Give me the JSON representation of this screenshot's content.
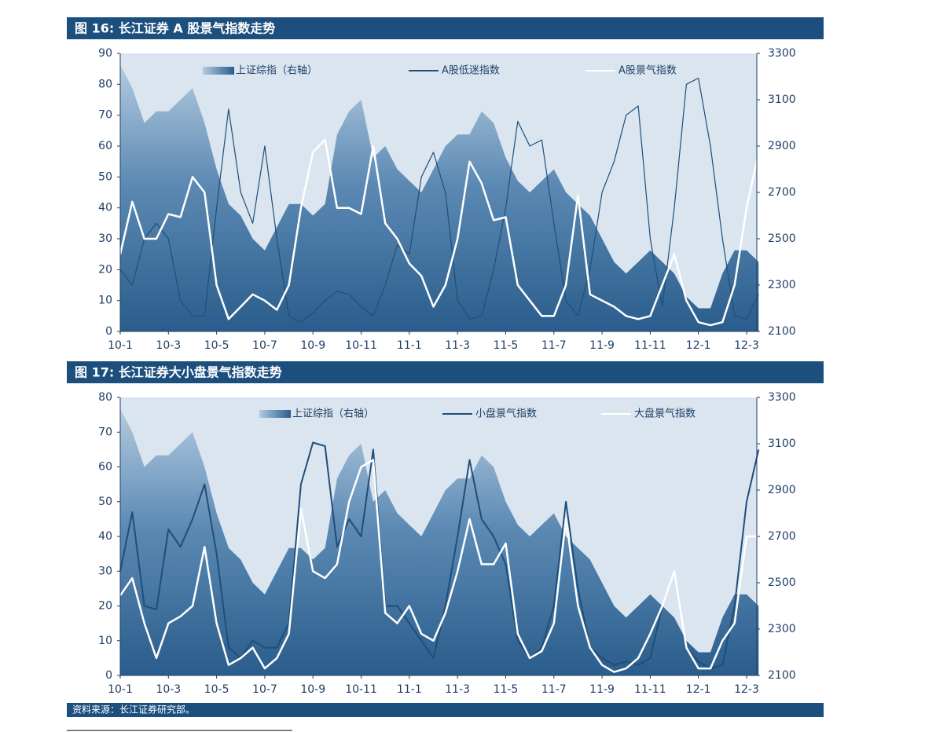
{
  "chart_data": [
    {
      "type": "line",
      "title": "图 16: 长江证券 A 股景气指数走势",
      "categories": [
        "10-1",
        null,
        null,
        null,
        "10-3",
        null,
        null,
        null,
        "10-5",
        null,
        null,
        null,
        "10-7",
        null,
        null,
        null,
        "10-9",
        null,
        null,
        null,
        "10-11",
        null,
        null,
        null,
        "11-1",
        null,
        null,
        null,
        "11-3",
        null,
        null,
        null,
        "11-5",
        null,
        null,
        null,
        "11-7",
        null,
        null,
        null,
        "11-9",
        null,
        null,
        null,
        "11-11",
        null,
        null,
        null,
        "12-1",
        null,
        null,
        null,
        "12-3",
        null
      ],
      "ylim": [
        0,
        90
      ],
      "yticks": [
        0,
        10,
        20,
        30,
        40,
        50,
        60,
        70,
        80,
        90
      ],
      "y2lim": [
        2100,
        3300
      ],
      "y2ticks": [
        2100,
        2300,
        2500,
        2700,
        2900,
        3100,
        3300
      ],
      "series": [
        {
          "name": "上证综指（右轴）",
          "style": "area",
          "axis": "y2",
          "color": "#2e6491",
          "values": [
            3250,
            3150,
            3000,
            3050,
            3050,
            3100,
            3150,
            3000,
            2800,
            2650,
            2600,
            2500,
            2450,
            2550,
            2650,
            2650,
            2600,
            2650,
            2950,
            3050,
            3100,
            2850,
            2900,
            2800,
            2750,
            2700,
            2800,
            2900,
            2950,
            2950,
            3050,
            3000,
            2850,
            2750,
            2700,
            2750,
            2800,
            2700,
            2650,
            2600,
            2500,
            2400,
            2350,
            2400,
            2450,
            2400,
            2350,
            2250,
            2200,
            2200,
            2350,
            2450,
            2450,
            2400
          ]
        },
        {
          "name": "A股低迷指数",
          "style": "line",
          "color": "#1f4e79",
          "values": [
            20,
            15,
            30,
            35,
            30,
            10,
            5,
            5,
            40,
            72,
            45,
            35,
            60,
            30,
            5,
            3,
            6,
            10,
            13,
            12,
            8,
            5,
            15,
            28,
            25,
            50,
            58,
            45,
            10,
            4,
            5,
            20,
            40,
            68,
            60,
            62,
            35,
            10,
            5,
            20,
            45,
            55,
            70,
            73,
            30,
            8,
            40,
            80,
            82,
            60,
            30,
            5,
            4,
            12
          ]
        },
        {
          "name": "A股景气指数",
          "style": "line",
          "color": "#ffffff",
          "values": [
            25,
            42,
            30,
            30,
            38,
            37,
            50,
            45,
            15,
            4,
            8,
            12,
            10,
            7,
            15,
            40,
            58,
            62,
            40,
            40,
            38,
            60,
            35,
            30,
            22,
            18,
            8,
            15,
            30,
            55,
            48,
            36,
            37,
            15,
            10,
            5,
            5,
            15,
            44,
            12,
            10,
            8,
            5,
            4,
            5,
            15,
            25,
            10,
            3,
            2,
            3,
            15,
            40,
            58
          ]
        }
      ]
    },
    {
      "type": "line",
      "title": "图 17: 长江证券大小盘景气指数走势",
      "categories": [
        "10-1",
        null,
        null,
        null,
        "10-3",
        null,
        null,
        null,
        "10-5",
        null,
        null,
        null,
        "10-7",
        null,
        null,
        null,
        "10-9",
        null,
        null,
        null,
        "10-11",
        null,
        null,
        null,
        "11-1",
        null,
        null,
        null,
        "11-3",
        null,
        null,
        null,
        "11-5",
        null,
        null,
        null,
        "11-7",
        null,
        null,
        null,
        "11-9",
        null,
        null,
        null,
        "11-11",
        null,
        null,
        null,
        "12-1",
        null,
        null,
        null,
        "12-3",
        null
      ],
      "ylim": [
        0,
        80
      ],
      "yticks": [
        0,
        10,
        20,
        30,
        40,
        50,
        60,
        70,
        80
      ],
      "y2lim": [
        2100,
        3300
      ],
      "y2ticks": [
        2100,
        2300,
        2500,
        2700,
        2900,
        3100,
        3300
      ],
      "series": [
        {
          "name": "上证综指（右轴）",
          "style": "area",
          "axis": "y2",
          "color": "#2e6491",
          "values": [
            3250,
            3150,
            3000,
            3050,
            3050,
            3100,
            3150,
            3000,
            2800,
            2650,
            2600,
            2500,
            2450,
            2550,
            2650,
            2650,
            2600,
            2650,
            2950,
            3050,
            3100,
            2850,
            2900,
            2800,
            2750,
            2700,
            2800,
            2900,
            2950,
            2950,
            3050,
            3000,
            2850,
            2750,
            2700,
            2750,
            2800,
            2700,
            2650,
            2600,
            2500,
            2400,
            2350,
            2400,
            2450,
            2400,
            2350,
            2250,
            2200,
            2200,
            2350,
            2450,
            2450,
            2400
          ]
        },
        {
          "name": "小盘景气指数",
          "style": "line",
          "color": "#1f4e79",
          "values": [
            30,
            47,
            20,
            19,
            42,
            37,
            45,
            55,
            35,
            8,
            5,
            10,
            8,
            8,
            15,
            55,
            67,
            66,
            37,
            45,
            40,
            65,
            20,
            20,
            15,
            10,
            5,
            20,
            40,
            62,
            45,
            40,
            32,
            10,
            5,
            8,
            20,
            50,
            25,
            8,
            5,
            3,
            4,
            3,
            5,
            20,
            30,
            8,
            4,
            2,
            3,
            20,
            50,
            65
          ]
        },
        {
          "name": "大盘景气指数",
          "style": "line",
          "color": "#ffffff",
          "values": [
            23,
            28,
            15,
            5,
            15,
            17,
            20,
            37,
            15,
            3,
            5,
            8,
            2,
            5,
            12,
            48,
            30,
            28,
            32,
            50,
            60,
            62,
            18,
            15,
            20,
            12,
            10,
            18,
            30,
            45,
            32,
            32,
            38,
            12,
            5,
            7,
            15,
            45,
            20,
            8,
            3,
            1,
            2,
            5,
            12,
            20,
            30,
            8,
            2,
            2,
            10,
            15,
            40,
            40
          ]
        }
      ]
    }
  ],
  "source": "资料来源：长江证券研究部。"
}
